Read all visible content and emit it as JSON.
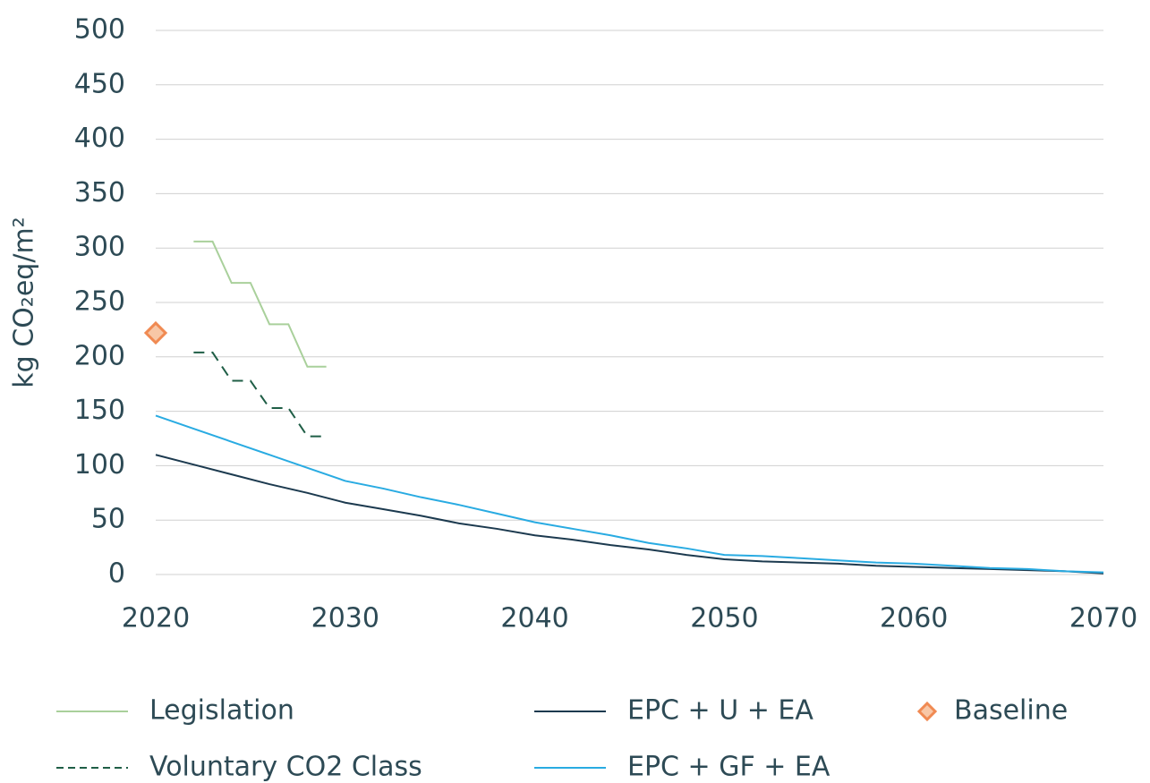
{
  "chart_data": {
    "type": "line",
    "ylabel": "kg CO₂eq/m²",
    "xlim": [
      2020,
      2070
    ],
    "xticks": [
      2020,
      2030,
      2040,
      2050,
      2060,
      2070
    ],
    "ylim": [
      0,
      500
    ],
    "yticks": [
      0,
      50,
      100,
      150,
      200,
      250,
      300,
      350,
      400,
      450,
      500
    ],
    "grid": true,
    "legend": "bottom",
    "series": [
      {
        "name": "Legislation",
        "color": "#a9d09b",
        "linestyle": "solid",
        "x": [
          2022,
          2023,
          2024,
          2025,
          2026,
          2027,
          2028,
          2029
        ],
        "values": [
          306,
          306,
          268,
          268,
          230,
          230,
          191,
          191
        ]
      },
      {
        "name": "Voluntary CO2 Class",
        "color": "#1f5e46",
        "linestyle": "dashed",
        "x": [
          2022,
          2023,
          2024,
          2025,
          2026,
          2027,
          2028,
          2029
        ],
        "values": [
          204,
          204,
          178,
          178,
          153,
          153,
          127,
          127
        ]
      },
      {
        "name": "EPC + U + EA",
        "color": "#1c3a4f",
        "linestyle": "solid",
        "x": [
          2020,
          2022,
          2024,
          2026,
          2028,
          2030,
          2032,
          2034,
          2036,
          2038,
          2040,
          2042,
          2044,
          2046,
          2048,
          2050,
          2052,
          2054,
          2056,
          2058,
          2060,
          2062,
          2064,
          2066,
          2068,
          2070
        ],
        "values": [
          110,
          101,
          92,
          83,
          75,
          66,
          60,
          54,
          47,
          42,
          36,
          32,
          27,
          23,
          18,
          14,
          12,
          11,
          10,
          8,
          7,
          6,
          5,
          4,
          3,
          1
        ]
      },
      {
        "name": "EPC + GF + EA",
        "color": "#29abe2",
        "linestyle": "solid",
        "x": [
          2020,
          2022,
          2024,
          2026,
          2028,
          2030,
          2032,
          2034,
          2036,
          2038,
          2040,
          2042,
          2044,
          2046,
          2048,
          2050,
          2052,
          2054,
          2056,
          2058,
          2060,
          2062,
          2064,
          2066,
          2068,
          2070
        ],
        "values": [
          146,
          134,
          122,
          110,
          98,
          86,
          79,
          71,
          64,
          56,
          48,
          42,
          36,
          29,
          24,
          18,
          17,
          15,
          13,
          11,
          10,
          8,
          6,
          5,
          3,
          2
        ]
      },
      {
        "name": "Baseline",
        "color": "#f08a52",
        "fill": "#f8c7a6",
        "marker": "diamond",
        "x": [
          2020
        ],
        "values": [
          222
        ]
      }
    ]
  }
}
